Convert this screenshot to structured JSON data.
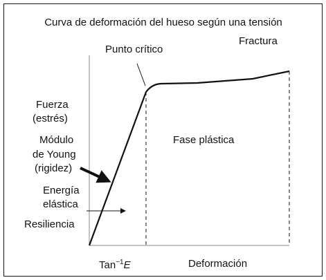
{
  "title": "Curva de deformación del hueso según una tensión",
  "labels": {
    "critical_point": "Punto crítico",
    "fracture": "Fractura",
    "y_axis": [
      "Fuerza",
      "(estrés)"
    ],
    "young_modulus": [
      "Módulo",
      "de Young",
      "(rigidez)"
    ],
    "elastic_energy": [
      "Energía",
      "elástica"
    ],
    "resilience": "Resiliencia",
    "plastic_phase": "Fase plástica",
    "tan": {
      "base": "Tan",
      "exponent": "−1",
      "symbol": "E"
    },
    "x_axis": "Deformación"
  }
}
